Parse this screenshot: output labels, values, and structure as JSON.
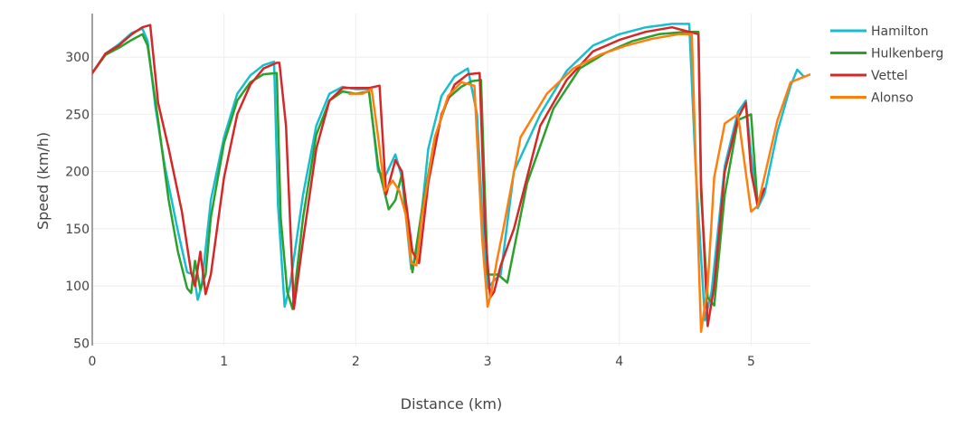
{
  "chart_data": {
    "type": "line",
    "title": "",
    "xlabel": "Distance (km)",
    "ylabel": "Speed (km/h)",
    "xlim": [
      0,
      5.45
    ],
    "ylim": [
      48,
      338
    ],
    "x_ticks": [
      {
        "value": 0,
        "label": "0"
      },
      {
        "value": 1,
        "label": "1"
      },
      {
        "value": 2,
        "label": "2"
      },
      {
        "value": 3,
        "label": "3"
      },
      {
        "value": 4,
        "label": "4"
      },
      {
        "value": 5,
        "label": "5"
      }
    ],
    "y_ticks": [
      {
        "value": 50,
        "label": "50"
      },
      {
        "value": 100,
        "label": "100"
      },
      {
        "value": 150,
        "label": "150"
      },
      {
        "value": 200,
        "label": "200"
      },
      {
        "value": 250,
        "label": "250"
      },
      {
        "value": 300,
        "label": "300"
      }
    ],
    "grid": true,
    "legend_position": "top-right",
    "series": [
      {
        "name": "Hamilton",
        "color": "#17becf",
        "x": [
          0,
          0.1,
          0.2,
          0.3,
          0.38,
          0.42,
          0.48,
          0.55,
          0.65,
          0.72,
          0.77,
          0.8,
          0.83,
          0.9,
          1.0,
          1.1,
          1.2,
          1.3,
          1.38,
          1.41,
          1.46,
          1.5,
          1.6,
          1.7,
          1.8,
          1.9,
          2.0,
          2.1,
          2.17,
          2.22,
          2.3,
          2.35,
          2.42,
          2.47,
          2.55,
          2.65,
          2.75,
          2.85,
          2.92,
          2.97,
          3.0,
          3.05,
          3.1,
          3.2,
          3.4,
          3.6,
          3.8,
          4.0,
          4.2,
          4.4,
          4.53,
          4.58,
          4.65,
          4.7,
          4.8,
          4.9,
          4.96,
          5.0,
          5.05,
          5.1,
          5.2,
          5.3,
          5.35,
          5.4
        ],
        "y": [
          286,
          303,
          311,
          321,
          325,
          314,
          256,
          205,
          148,
          112,
          110,
          88,
          100,
          175,
          230,
          268,
          284,
          293,
          296,
          170,
          82,
          100,
          180,
          240,
          268,
          274,
          272,
          272,
          200,
          195,
          215,
          195,
          115,
          130,
          220,
          266,
          283,
          290,
          250,
          140,
          98,
          105,
          110,
          200,
          250,
          288,
          310,
          320,
          326,
          329,
          329,
          200,
          70,
          95,
          205,
          252,
          262,
          215,
          168,
          180,
          235,
          275,
          289,
          283
        ]
      },
      {
        "name": "Hulkenberg",
        "color": "#2ca02c",
        "x": [
          0,
          0.1,
          0.2,
          0.3,
          0.38,
          0.42,
          0.5,
          0.58,
          0.65,
          0.72,
          0.75,
          0.78,
          0.82,
          0.86,
          0.9,
          1.0,
          1.1,
          1.2,
          1.3,
          1.4,
          1.43,
          1.48,
          1.52,
          1.6,
          1.7,
          1.8,
          1.9,
          2.0,
          2.1,
          2.17,
          2.25,
          2.3,
          2.35,
          2.43,
          2.5,
          2.6,
          2.7,
          2.8,
          2.88,
          2.95,
          3.0,
          3.08,
          3.15,
          3.3,
          3.5,
          3.7,
          3.9,
          4.1,
          4.3,
          4.5,
          4.6,
          4.62,
          4.67,
          4.72,
          4.8,
          4.9,
          5.0,
          5.05
        ],
        "y": [
          286,
          302,
          308,
          315,
          320,
          310,
          245,
          175,
          130,
          98,
          94,
          122,
          97,
          110,
          160,
          225,
          262,
          278,
          285,
          286,
          160,
          95,
          80,
          160,
          232,
          262,
          270,
          268,
          270,
          205,
          167,
          175,
          198,
          112,
          165,
          230,
          264,
          274,
          279,
          280,
          110,
          110,
          103,
          190,
          255,
          290,
          304,
          314,
          320,
          322,
          322,
          180,
          90,
          83,
          180,
          245,
          250,
          170
        ]
      },
      {
        "name": "Vettel",
        "color": "#d62728",
        "x": [
          0,
          0.1,
          0.2,
          0.3,
          0.38,
          0.44,
          0.5,
          0.58,
          0.68,
          0.75,
          0.78,
          0.82,
          0.86,
          0.9,
          1.0,
          1.1,
          1.2,
          1.3,
          1.4,
          1.42,
          1.47,
          1.53,
          1.6,
          1.7,
          1.8,
          1.9,
          2.0,
          2.1,
          2.18,
          2.23,
          2.3,
          2.35,
          2.43,
          2.48,
          2.55,
          2.65,
          2.75,
          2.85,
          2.94,
          2.98,
          3.02,
          3.05,
          3.1,
          3.2,
          3.4,
          3.6,
          3.8,
          4.0,
          4.2,
          4.4,
          4.6,
          4.62,
          4.67,
          4.72,
          4.8,
          4.9,
          4.96,
          5.0,
          5.05,
          5.1
        ],
        "y": [
          286,
          303,
          310,
          320,
          326,
          328,
          260,
          220,
          165,
          112,
          100,
          130,
          93,
          110,
          195,
          250,
          276,
          290,
          295,
          295,
          240,
          80,
          140,
          220,
          262,
          273,
          273,
          273,
          275,
          180,
          210,
          200,
          130,
          120,
          190,
          250,
          276,
          285,
          286,
          150,
          90,
          95,
          118,
          150,
          240,
          280,
          305,
          315,
          322,
          326,
          320,
          190,
          65,
          100,
          200,
          247,
          260,
          200,
          170,
          185
        ]
      },
      {
        "name": "Alonso",
        "color": "#ff7f0e",
        "x": [
          1.95,
          2.05,
          2.12,
          2.17,
          2.22,
          2.28,
          2.33,
          2.38,
          2.42,
          2.46,
          2.5,
          2.6,
          2.7,
          2.8,
          2.9,
          2.96,
          3.0,
          3.03,
          3.07,
          3.12,
          3.25,
          3.45,
          3.65,
          3.85,
          4.05,
          4.25,
          4.45,
          4.55,
          4.6,
          4.62,
          4.67,
          4.72,
          4.8,
          4.9,
          5.0,
          5.05,
          5.1,
          5.2,
          5.3,
          5.45
        ],
        "y": [
          268,
          268,
          272,
          230,
          183,
          192,
          183,
          162,
          120,
          118,
          160,
          230,
          266,
          278,
          275,
          140,
          82,
          95,
          122,
          150,
          230,
          268,
          290,
          302,
          310,
          316,
          320,
          320,
          130,
          60,
          100,
          195,
          242,
          250,
          165,
          170,
          195,
          245,
          278,
          285
        ]
      }
    ]
  }
}
